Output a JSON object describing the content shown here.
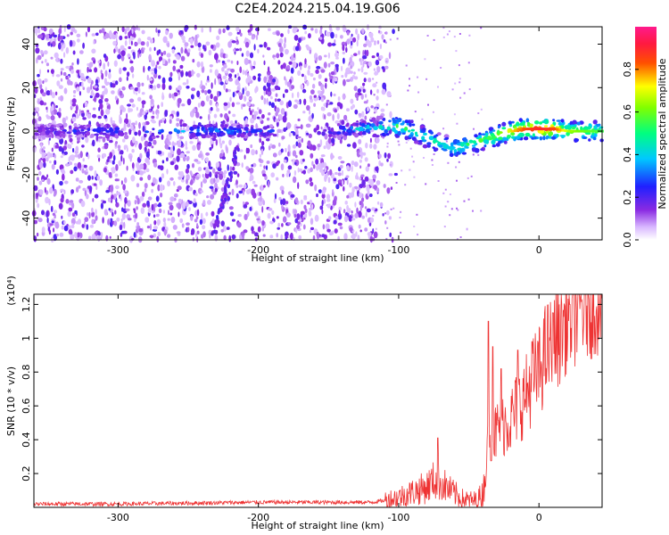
{
  "title": "C2E4.2024.215.04.19.G06",
  "colors": {
    "snr_line": "#ee3333",
    "axis": "#000000",
    "background": "#ffffff"
  },
  "chart_data": [
    {
      "type": "heatmap",
      "name": "spectrogram",
      "xlabel": "Height of straight line (km)",
      "ylabel": "Frequency (Hz)",
      "xlim": [
        -360,
        45
      ],
      "ylim": [
        -50,
        48
      ],
      "xticks": [
        -300,
        -200,
        -100,
        0
      ],
      "xtick_labels": [
        "-300",
        "-200",
        "-100",
        "0"
      ],
      "yticks": [
        -40,
        -20,
        0,
        20,
        40
      ],
      "ytick_labels": [
        "-40",
        "-20",
        "0",
        "20",
        "40"
      ],
      "colorbar": {
        "label": "Normalized spectral amplitude",
        "range": [
          0,
          1
        ],
        "ticks": [
          0.0,
          0.2,
          0.4,
          0.6,
          0.8
        ],
        "tick_labels": [
          "0.0",
          "0.2",
          "0.4",
          "0.6",
          "0.8"
        ],
        "colormap": "rainbow (white-violet-blue-cyan-green-yellow-red-magenta)"
      },
      "ridge": {
        "description": "dominant frequency track vs height",
        "x": [
          -360,
          -250,
          -150,
          -130,
          -110,
          -100,
          -90,
          -80,
          -70,
          -60,
          -50,
          -40,
          -30,
          -20,
          -10,
          0,
          10,
          20,
          30,
          45
        ],
        "freq": [
          0,
          0,
          0,
          1,
          2,
          2,
          0,
          -3,
          -6,
          -8,
          -6,
          -4,
          -2,
          0,
          1,
          1,
          1,
          0,
          0,
          0
        ],
        "amplitude": [
          0.18,
          0.35,
          0.2,
          0.4,
          0.45,
          0.55,
          0.5,
          0.5,
          0.45,
          0.45,
          0.5,
          0.55,
          0.65,
          0.75,
          0.85,
          0.9,
          0.85,
          0.65,
          0.6,
          0.55
        ]
      },
      "streak": {
        "description": "descending stripe near -230 to -210 km",
        "x": [
          -232,
          -215
        ],
        "freq": [
          -48,
          -8
        ]
      },
      "noise_region_x": [
        -360,
        -120
      ]
    },
    {
      "type": "line",
      "name": "snr",
      "xlabel": "Height of straight line (km)",
      "ylabel": "SNR (10 * v/v)",
      "y_multiplier": "(x10⁴)",
      "xlim": [
        -360,
        45
      ],
      "ylim": [
        0,
        1.26
      ],
      "xticks": [
        -300,
        -200,
        -100,
        0
      ],
      "xtick_labels": [
        "-300",
        "-200",
        "-100",
        "0"
      ],
      "yticks": [
        0.2,
        0.4,
        0.6,
        0.8,
        1.0,
        1.2
      ],
      "ytick_labels": [
        "0.2",
        "0.4",
        "0.6",
        "0.8",
        "1",
        "1.2"
      ],
      "series": [
        {
          "name": "SNR",
          "x": [
            -360,
            -300,
            -250,
            -200,
            -150,
            -120,
            -110,
            -100,
            -90,
            -80,
            -75,
            -70,
            -65,
            -60,
            -55,
            -50,
            -45,
            -40,
            -37,
            -35,
            -33,
            -30,
            -25,
            -20,
            -15,
            -10,
            -5,
            0,
            5,
            10,
            15,
            20,
            25,
            30,
            35,
            40,
            45
          ],
          "y": [
            0.02,
            0.02,
            0.025,
            0.03,
            0.03,
            0.03,
            0.04,
            0.06,
            0.09,
            0.12,
            0.16,
            0.15,
            0.11,
            0.08,
            0.05,
            0.04,
            0.04,
            0.08,
            0.3,
            0.5,
            0.4,
            0.45,
            0.5,
            0.52,
            0.6,
            0.65,
            0.75,
            0.8,
            0.92,
            0.95,
            1.05,
            1.12,
            1.15,
            1.18,
            1.2,
            1.21,
            1.22
          ]
        }
      ],
      "spikes": [
        {
          "x": -72,
          "y": 0.41
        },
        {
          "x": -36,
          "y": 1.1
        },
        {
          "x": -33,
          "y": 0.95
        },
        {
          "x": -27,
          "y": 0.82
        },
        {
          "x": -15,
          "y": 0.93
        },
        {
          "x": -5,
          "y": 0.98
        },
        {
          "x": 10,
          "y": 1.15
        },
        {
          "x": 22,
          "y": 1.2
        }
      ]
    }
  ]
}
